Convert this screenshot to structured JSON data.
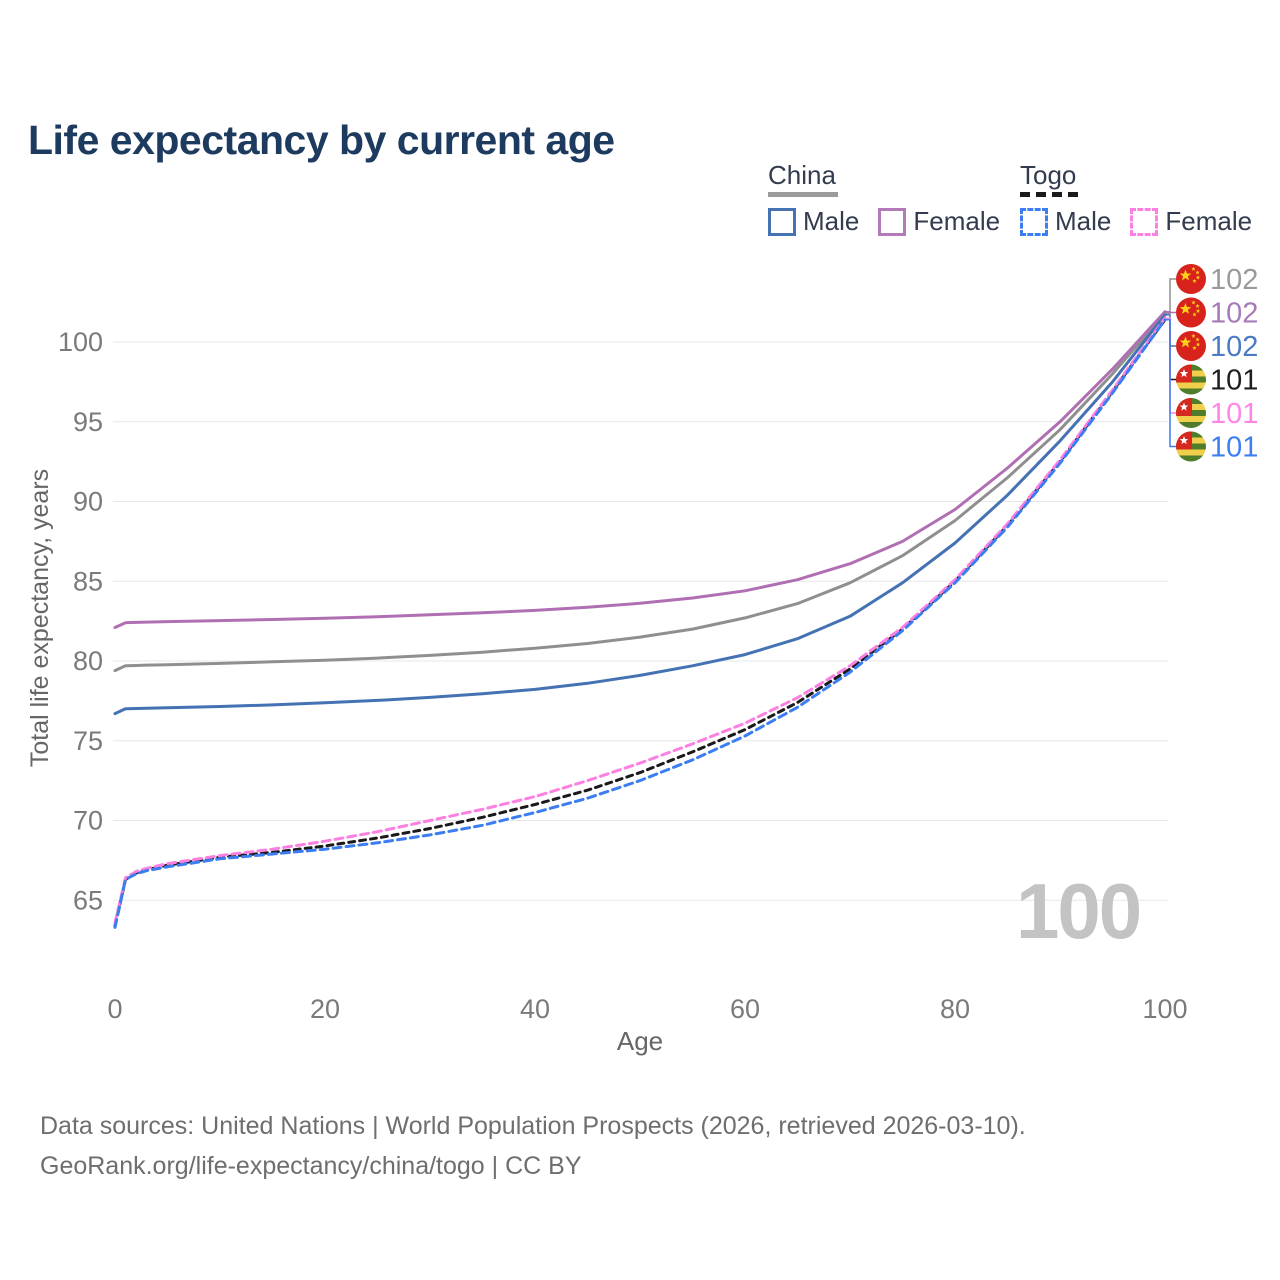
{
  "title": "Life expectancy by current age",
  "watermark": "100",
  "legend": {
    "groups": [
      {
        "label": "China",
        "line_style": "solid",
        "swatch_color": "#9b9b9b",
        "items": [
          {
            "label": "Male",
            "color": "#4472b3"
          },
          {
            "label": "Female",
            "color": "#b47ab8"
          }
        ]
      },
      {
        "label": "Togo",
        "line_style": "dashed",
        "swatch_color": "#1a1a1a",
        "items": [
          {
            "label": "Male",
            "color": "#3c7ef2"
          },
          {
            "label": "Female",
            "color": "#fb80e2"
          }
        ]
      }
    ]
  },
  "footer": {
    "line1": "Data sources: United Nations | World Population Prospects (2026, retrieved 2026-03-10).",
    "line2": "GeoRank.org/life-expectancy/china/togo | CC BY"
  },
  "chart_data": {
    "type": "line",
    "title": "Life expectancy by current age",
    "xlabel": "Age",
    "ylabel": "Total life expectancy, years",
    "xlim": [
      0,
      100
    ],
    "ylim": [
      62,
      103
    ],
    "xticks": [
      0,
      20,
      40,
      60,
      80,
      100
    ],
    "yticks": [
      65,
      70,
      75,
      80,
      85,
      90,
      95,
      100
    ],
    "grid": true,
    "legend_position": "top-right",
    "axis_text_color": "#7a7a7a",
    "grid_color": "#e7e7e7",
    "series": [
      {
        "name": "china-combined",
        "country": "China",
        "sex": "both",
        "color": "#8f8f8f",
        "dash": null,
        "end_label": "102",
        "end_label_color": "#9a9a9a",
        "flag": "china",
        "points": [
          [
            0,
            79.4
          ],
          [
            1,
            79.7
          ],
          [
            2,
            79.72
          ],
          [
            3,
            79.74
          ],
          [
            5,
            79.77
          ],
          [
            10,
            79.85
          ],
          [
            15,
            79.95
          ],
          [
            20,
            80.05
          ],
          [
            25,
            80.18
          ],
          [
            30,
            80.35
          ],
          [
            35,
            80.55
          ],
          [
            40,
            80.8
          ],
          [
            45,
            81.1
          ],
          [
            50,
            81.5
          ],
          [
            55,
            82.0
          ],
          [
            60,
            82.7
          ],
          [
            65,
            83.6
          ],
          [
            70,
            84.9
          ],
          [
            75,
            86.6
          ],
          [
            80,
            88.8
          ],
          [
            85,
            91.5
          ],
          [
            90,
            94.5
          ],
          [
            95,
            98.0
          ],
          [
            100,
            101.8
          ]
        ]
      },
      {
        "name": "china-female",
        "country": "China",
        "sex": "female",
        "color": "#b06fb3",
        "dash": null,
        "end_label": "102",
        "end_label_color": "#a77ab8",
        "flag": "china",
        "points": [
          [
            0,
            82.1
          ],
          [
            1,
            82.4
          ],
          [
            2,
            82.42
          ],
          [
            3,
            82.44
          ],
          [
            5,
            82.47
          ],
          [
            10,
            82.53
          ],
          [
            15,
            82.6
          ],
          [
            20,
            82.68
          ],
          [
            25,
            82.78
          ],
          [
            30,
            82.9
          ],
          [
            35,
            83.02
          ],
          [
            40,
            83.17
          ],
          [
            45,
            83.37
          ],
          [
            50,
            83.62
          ],
          [
            55,
            83.95
          ],
          [
            60,
            84.4
          ],
          [
            65,
            85.1
          ],
          [
            70,
            86.1
          ],
          [
            75,
            87.5
          ],
          [
            80,
            89.5
          ],
          [
            85,
            92.1
          ],
          [
            90,
            95.0
          ],
          [
            95,
            98.3
          ],
          [
            100,
            101.9
          ]
        ]
      },
      {
        "name": "china-male",
        "country": "China",
        "sex": "male",
        "color": "#4472b3",
        "dash": null,
        "end_label": "102",
        "end_label_color": "#4a7bc4",
        "flag": "china",
        "points": [
          [
            0,
            76.7
          ],
          [
            1,
            77.0
          ],
          [
            2,
            77.02
          ],
          [
            3,
            77.04
          ],
          [
            5,
            77.07
          ],
          [
            10,
            77.15
          ],
          [
            15,
            77.25
          ],
          [
            20,
            77.38
          ],
          [
            25,
            77.53
          ],
          [
            30,
            77.72
          ],
          [
            35,
            77.95
          ],
          [
            40,
            78.22
          ],
          [
            45,
            78.6
          ],
          [
            50,
            79.1
          ],
          [
            55,
            79.7
          ],
          [
            60,
            80.4
          ],
          [
            65,
            81.4
          ],
          [
            70,
            82.8
          ],
          [
            75,
            84.9
          ],
          [
            80,
            87.4
          ],
          [
            85,
            90.4
          ],
          [
            90,
            93.8
          ],
          [
            95,
            97.5
          ],
          [
            100,
            101.7
          ]
        ]
      },
      {
        "name": "togo-combined",
        "country": "Togo",
        "sex": "both",
        "color": "#1a1a1a",
        "dash": "6 5",
        "end_label": "101",
        "end_label_color": "#1f1f1f",
        "flag": "togo",
        "points": [
          [
            0,
            63.4
          ],
          [
            1,
            66.3
          ],
          [
            2,
            66.7
          ],
          [
            3,
            66.9
          ],
          [
            5,
            67.2
          ],
          [
            10,
            67.7
          ],
          [
            15,
            68.0
          ],
          [
            20,
            68.4
          ],
          [
            25,
            68.9
          ],
          [
            30,
            69.5
          ],
          [
            35,
            70.2
          ],
          [
            40,
            71.0
          ],
          [
            45,
            71.9
          ],
          [
            50,
            73.0
          ],
          [
            55,
            74.3
          ],
          [
            60,
            75.7
          ],
          [
            65,
            77.4
          ],
          [
            70,
            79.5
          ],
          [
            75,
            82.0
          ],
          [
            80,
            85.0
          ],
          [
            85,
            88.5
          ],
          [
            90,
            92.5
          ],
          [
            95,
            96.9
          ],
          [
            100,
            101.4
          ]
        ]
      },
      {
        "name": "togo-female",
        "country": "Togo",
        "sex": "female",
        "color": "#fb80e2",
        "dash": "8 5",
        "end_label": "101",
        "end_label_color": "#ff85e8",
        "flag": "togo",
        "points": [
          [
            0,
            63.6
          ],
          [
            1,
            66.4
          ],
          [
            2,
            66.8
          ],
          [
            3,
            67.0
          ],
          [
            5,
            67.3
          ],
          [
            10,
            67.8
          ],
          [
            15,
            68.2
          ],
          [
            20,
            68.7
          ],
          [
            25,
            69.3
          ],
          [
            30,
            70.0
          ],
          [
            35,
            70.7
          ],
          [
            40,
            71.5
          ],
          [
            45,
            72.5
          ],
          [
            50,
            73.6
          ],
          [
            55,
            74.8
          ],
          [
            60,
            76.1
          ],
          [
            65,
            77.7
          ],
          [
            70,
            79.7
          ],
          [
            75,
            82.1
          ],
          [
            80,
            85.1
          ],
          [
            85,
            88.6
          ],
          [
            90,
            92.6
          ],
          [
            95,
            97.0
          ],
          [
            100,
            101.5
          ]
        ]
      },
      {
        "name": "togo-male",
        "country": "Togo",
        "sex": "male",
        "color": "#3c7ef2",
        "dash": "8 5",
        "end_label": "101",
        "end_label_color": "#3d7ff2",
        "flag": "togo",
        "points": [
          [
            0,
            63.3
          ],
          [
            1,
            66.3
          ],
          [
            2,
            66.65
          ],
          [
            3,
            66.85
          ],
          [
            5,
            67.1
          ],
          [
            10,
            67.6
          ],
          [
            15,
            67.9
          ],
          [
            20,
            68.2
          ],
          [
            25,
            68.6
          ],
          [
            30,
            69.1
          ],
          [
            35,
            69.7
          ],
          [
            40,
            70.5
          ],
          [
            45,
            71.4
          ],
          [
            50,
            72.5
          ],
          [
            55,
            73.8
          ],
          [
            60,
            75.3
          ],
          [
            65,
            77.1
          ],
          [
            70,
            79.3
          ],
          [
            75,
            81.9
          ],
          [
            80,
            84.9
          ],
          [
            85,
            88.4
          ],
          [
            90,
            92.4
          ],
          [
            95,
            96.8
          ],
          [
            100,
            101.4
          ]
        ]
      }
    ]
  }
}
